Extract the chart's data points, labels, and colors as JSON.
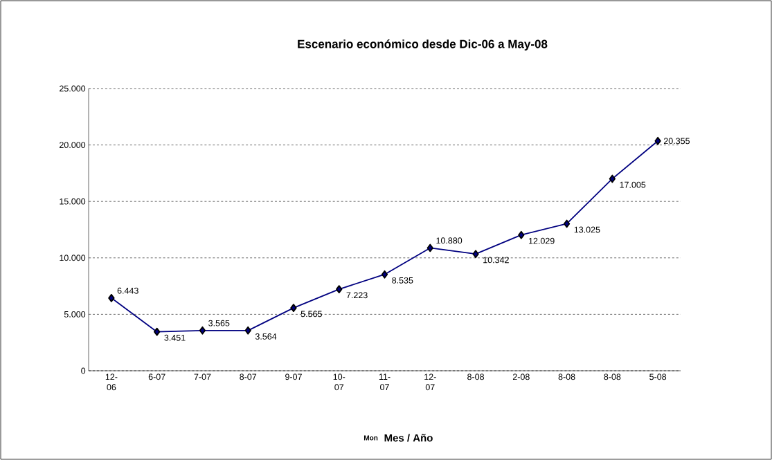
{
  "chart_data": {
    "type": "line",
    "title": "Escenario económico desde Dic-06 a May-08",
    "xlabel": "Mes / Año",
    "annotations": [
      "Mon"
    ],
    "categories": [
      "12-06",
      "6-07",
      "7-07",
      "8-07",
      "9-07",
      "10-07",
      "11-07",
      "12-07",
      "8-08",
      "2-08",
      "8-08",
      "8-08",
      "5-08"
    ],
    "values": [
      6443,
      3451,
      3565,
      3564,
      5565,
      7223,
      8535,
      10880,
      10342,
      12029,
      13025,
      17005,
      20355
    ],
    "value_labels": [
      "6.443",
      "3.451",
      "3.565",
      "3.564",
      "5.565",
      "7.223",
      "8.535",
      "10.880",
      "10.342",
      "12.029",
      "13.025",
      "17.005",
      "20.355"
    ],
    "color": "#000080",
    "ylim": [
      0,
      25000
    ],
    "yticks": [
      0,
      {
        "value": 5000,
        "label": "5.000"
      },
      {
        "value": 10000,
        "label": "10.000"
      },
      {
        "value": 15000,
        "label": "15.000"
      },
      {
        "value": 20000,
        "label": "20.000"
      },
      {
        "value": 25000,
        "label": "25.000"
      }
    ],
    "grid": "y",
    "marker": "diamond",
    "line_style": "solid"
  }
}
